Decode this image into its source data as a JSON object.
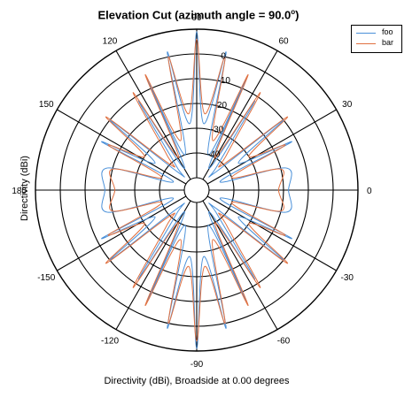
{
  "chart_data": {
    "type": "polar-line",
    "title": "Elevation Cut (azimuth angle = 90.0",
    "title_superscript": "o",
    "title_suffix": ")",
    "xlabel": "Directivity (dBi), Broadside at 0.00 degrees",
    "ylabel": "Directivity (dBi)",
    "angle_unit": "degrees",
    "angle_zero_direction": "right",
    "angle_direction": "counterclockwise",
    "angle_ticks": [
      0,
      30,
      60,
      90,
      120,
      150,
      180,
      -150,
      -120,
      -90,
      -60,
      -30
    ],
    "angle_tick_labels": [
      "0",
      "30",
      "60",
      "90",
      "120",
      "150",
      "180",
      "-150",
      "-120",
      "-90",
      "-60",
      "-30"
    ],
    "radial_range_dBi": [
      -55,
      10
    ],
    "radial_rings_dBi": [
      -50,
      -40,
      -30,
      -20,
      -10,
      0,
      10
    ],
    "radial_tick_labels": [
      "-40",
      "-30",
      "-20",
      "-10",
      "0"
    ],
    "radial_tick_values": [
      -40,
      -30,
      -20,
      -10,
      0
    ],
    "grid": true,
    "legend_position": "top-right",
    "series": [
      {
        "name": "foo",
        "color": "#4a90d9",
        "angles": [
          0,
          14,
          20,
          27,
          33,
          39,
          44,
          50,
          57,
          61,
          66,
          72,
          78,
          84,
          90,
          96,
          102,
          108,
          114,
          119,
          123,
          130,
          136,
          141,
          147,
          153,
          160,
          166,
          180
        ],
        "directivity": [
          -18,
          -18,
          -45,
          -12,
          -35,
          -10,
          -45,
          -42,
          -12,
          -45,
          -6,
          -40,
          2,
          -28,
          9,
          -28,
          2,
          -40,
          -6,
          -45,
          -12,
          -42,
          -45,
          -10,
          -35,
          -12,
          -45,
          -18,
          -18
        ]
      },
      {
        "name": "bar",
        "color": "#e07040",
        "angles": [
          0,
          14,
          20,
          27,
          33,
          39,
          44,
          50,
          57,
          61,
          66,
          72,
          78,
          84,
          90,
          96,
          102,
          108,
          114,
          119,
          123,
          130,
          136,
          141,
          147,
          153,
          160,
          166,
          180
        ],
        "directivity": [
          -22,
          -20,
          -40,
          -15,
          -30,
          -8,
          -40,
          -36,
          -8,
          -40,
          -4,
          -34,
          0,
          -24,
          6,
          -24,
          0,
          -34,
          -4,
          -40,
          -8,
          -36,
          -40,
          -8,
          -30,
          -15,
          -40,
          -20,
          -22
        ]
      }
    ]
  }
}
